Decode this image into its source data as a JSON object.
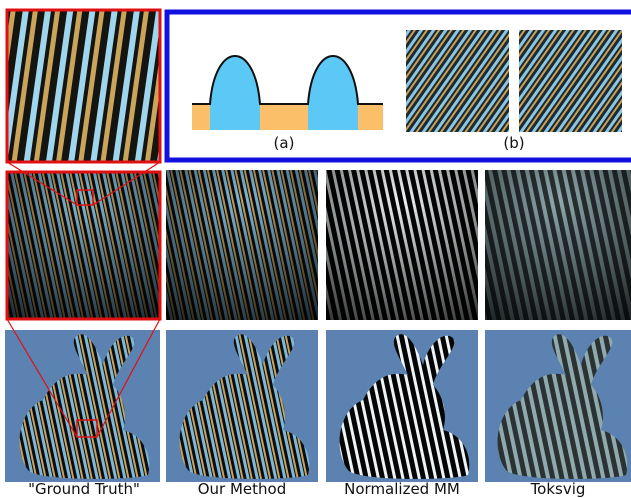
{
  "figure": {
    "diagram_labels": [
      "(a)",
      "(b)"
    ],
    "columns": [
      "\"Ground Truth\"",
      "Our Method",
      "Normalized MM",
      "Toksvig"
    ]
  }
}
